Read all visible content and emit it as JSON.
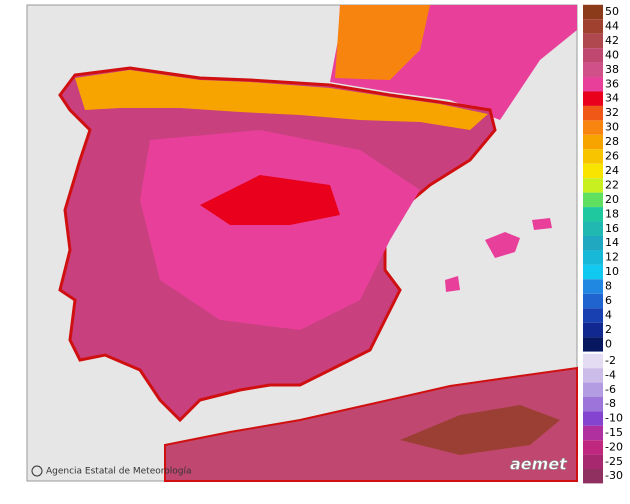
{
  "footer": {
    "agency": "Agencia Estatal de Meteorología",
    "logo": "aemet"
  },
  "legend": {
    "items": [
      {
        "label": "50",
        "color": "#8b3a1a"
      },
      {
        "label": "44",
        "color": "#a0402e"
      },
      {
        "label": "42",
        "color": "#b04850"
      },
      {
        "label": "40",
        "color": "#c04870"
      },
      {
        "label": "38",
        "color": "#d0508a"
      },
      {
        "label": "36",
        "color": "#e8409a"
      },
      {
        "label": "34",
        "color": "#e8001c"
      },
      {
        "label": "32",
        "color": "#f05818"
      },
      {
        "label": "30",
        "color": "#f88410"
      },
      {
        "label": "28",
        "color": "#f8a400"
      },
      {
        "label": "26",
        "color": "#f8c400"
      },
      {
        "label": "24",
        "color": "#f8e400"
      },
      {
        "label": "22",
        "color": "#c8f020"
      },
      {
        "label": "20",
        "color": "#60e060"
      },
      {
        "label": "18",
        "color": "#20c8a0"
      },
      {
        "label": "16",
        "color": "#20b8b0"
      },
      {
        "label": "14",
        "color": "#20a8c0"
      },
      {
        "label": "12",
        "color": "#18b8d8"
      },
      {
        "label": "10",
        "color": "#10c8f0"
      },
      {
        "label": "8",
        "color": "#2088e0"
      },
      {
        "label": "6",
        "color": "#2064d0"
      },
      {
        "label": "4",
        "color": "#1840b0"
      },
      {
        "label": "2",
        "color": "#102890"
      },
      {
        "label": "0",
        "color": "#081860"
      }
    ],
    "negative_items": [
      {
        "label": "-2",
        "color": "#e4dcf2"
      },
      {
        "label": "-4",
        "color": "#ccbcea"
      },
      {
        "label": "-6",
        "color": "#b49ce2"
      },
      {
        "label": "-8",
        "color": "#9c74da"
      },
      {
        "label": "-10",
        "color": "#8444d0"
      },
      {
        "label": "-15",
        "color": "#b030a0"
      },
      {
        "label": "-20",
        "color": "#c02880"
      },
      {
        "label": "-25",
        "color": "#a82870"
      },
      {
        "label": "-30",
        "color": "#903060"
      }
    ]
  }
}
